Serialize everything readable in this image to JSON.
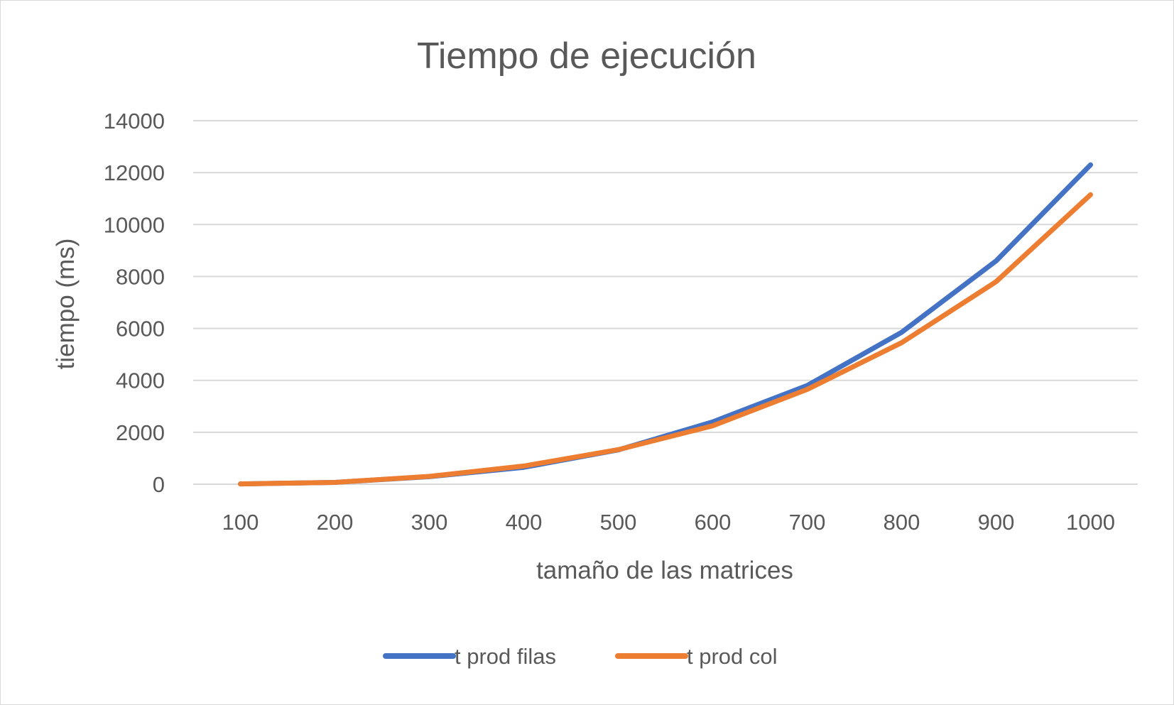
{
  "chart_data": {
    "type": "line",
    "title": "Tiempo de ejecución",
    "xlabel": "tamaño de las matrices",
    "ylabel": "tiempo (ms)",
    "categories": [
      "100",
      "200",
      "300",
      "400",
      "500",
      "600",
      "700",
      "800",
      "900",
      "1000"
    ],
    "y_ticks": [
      "0",
      "2000",
      "4000",
      "6000",
      "8000",
      "10000",
      "12000",
      "14000"
    ],
    "ylim": [
      0,
      14000
    ],
    "grid": true,
    "legend_position": "bottom",
    "series": [
      {
        "name": "t prod filas",
        "color": "#4472c4",
        "values": [
          10,
          70,
          290,
          650,
          1320,
          2400,
          3800,
          5850,
          8600,
          12300
        ]
      },
      {
        "name": "t prod col",
        "color": "#ed7d31",
        "values": [
          10,
          70,
          300,
          700,
          1330,
          2250,
          3650,
          5450,
          7800,
          11150
        ]
      }
    ]
  }
}
